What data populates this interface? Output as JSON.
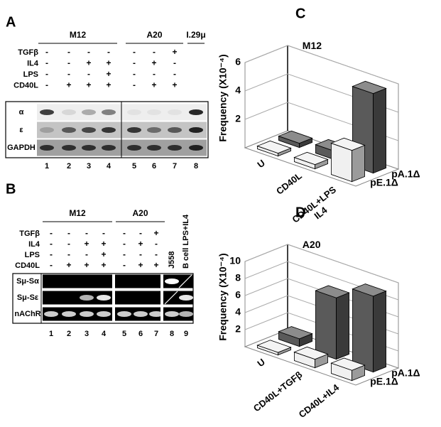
{
  "panels": [
    {
      "letter": "A",
      "groups": [
        "M12",
        "A20",
        "I.29μ"
      ],
      "conditions": [
        {
          "name": "TGFβ",
          "signs": [
            "-",
            "-",
            "-",
            "-",
            "-",
            "-",
            "+"
          ]
        },
        {
          "name": "IL4",
          "signs": [
            "-",
            "-",
            "+",
            "+",
            "-",
            "+",
            "-"
          ]
        },
        {
          "name": "LPS",
          "signs": [
            "-",
            "-",
            "-",
            "+",
            "-",
            "-",
            "-"
          ]
        },
        {
          "name": "CD40L",
          "signs": [
            "-",
            "+",
            "+",
            "+",
            "-",
            "+",
            "+"
          ]
        }
      ],
      "bands": [
        "α",
        "ε",
        "GAPDH"
      ],
      "lanes": [
        "1",
        "2",
        "3",
        "4",
        "5",
        "6",
        "7",
        "8"
      ]
    },
    {
      "letter": "B",
      "groups": [
        "M12",
        "A20"
      ],
      "controls": [
        "J558",
        "B cell LPS+IL4"
      ],
      "conditions": [
        {
          "name": "TGFβ",
          "signs": [
            "-",
            "-",
            "-",
            "-",
            "-",
            "-",
            "+"
          ]
        },
        {
          "name": "IL4",
          "signs": [
            "-",
            "-",
            "+",
            "+",
            "-",
            "+",
            "-"
          ]
        },
        {
          "name": "LPS",
          "signs": [
            "-",
            "-",
            "-",
            "+",
            "-",
            "-",
            "-"
          ]
        },
        {
          "name": "CD40L",
          "signs": [
            "-",
            "+",
            "+",
            "+",
            "-",
            "+",
            "+"
          ]
        }
      ],
      "bands": [
        "Sμ-Sα",
        "Sμ-Sε",
        "nAChR"
      ],
      "lanes": [
        "1",
        "2",
        "3",
        "4",
        "5",
        "6",
        "7",
        "8",
        "9"
      ]
    }
  ],
  "chart_data": [
    {
      "type": "bar3d",
      "label": "C",
      "title": "M12",
      "y_label": "Frequency (X10⁻⁴)",
      "categories": [
        "U",
        "CD40L",
        "CD40L+LPS\nIL4"
      ],
      "series": [
        {
          "name": "pA.1Δ",
          "color": "#5a5a5a",
          "values": [
            0.3,
            0.6,
            5.6
          ]
        },
        {
          "name": "pE.1Δ",
          "color": "#f0f0f0",
          "values": [
            0.2,
            0.3,
            2.2
          ]
        }
      ],
      "ylim": [
        0,
        6
      ],
      "yticks": [
        2,
        4,
        6
      ],
      "grid": true
    },
    {
      "type": "bar3d",
      "label": "D",
      "title": "A20",
      "y_label": "Frequency (X10⁻⁴)",
      "categories": [
        "U",
        "CD40L+TGFβ",
        "CD40L+IL4"
      ],
      "series": [
        {
          "name": "pA.1Δ",
          "color": "#5a5a5a",
          "values": [
            0.9,
            7.2,
            8.9
          ]
        },
        {
          "name": "pE.1Δ",
          "color": "#f0f0f0",
          "values": [
            0.3,
            1.0,
            1.2
          ]
        }
      ],
      "ylim": [
        0,
        10
      ],
      "yticks": [
        2,
        4,
        6,
        8,
        10
      ],
      "grid": true
    }
  ]
}
